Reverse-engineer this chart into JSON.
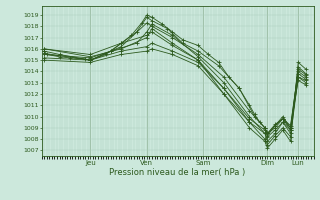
{
  "background_color": "#cce8dc",
  "grid_color": "#aaccbb",
  "line_color": "#2d5a1e",
  "ylabel_text": "Pression niveau de la mer( hPa )",
  "yticks": [
    1007,
    1008,
    1009,
    1010,
    1011,
    1012,
    1013,
    1014,
    1015,
    1016,
    1017,
    1018,
    1019
  ],
  "ylim": [
    1006.5,
    1019.8
  ],
  "xlim": [
    -0.05,
    5.25
  ],
  "xtick_positions": [
    0.9,
    2.0,
    3.1,
    4.35,
    4.95
  ],
  "xtick_labels": [
    "Jeu",
    "Ven",
    "Sam",
    "Dim",
    "Lun"
  ],
  "vline_positions": [
    0.9,
    2.0,
    3.1,
    4.35,
    4.95
  ],
  "lines": [
    [
      0.0,
      1015.8,
      0.05,
      1015.5,
      0.3,
      1015.3,
      0.5,
      1015.2,
      0.8,
      1015.1,
      0.9,
      1015.0,
      1.2,
      1015.5,
      1.5,
      1016.5,
      1.7,
      1017.2,
      1.9,
      1018.3,
      2.0,
      1019.0,
      2.1,
      1018.8,
      2.3,
      1018.2,
      2.5,
      1017.5,
      2.7,
      1016.8,
      3.0,
      1016.3,
      3.2,
      1015.5,
      3.4,
      1014.8,
      3.6,
      1013.5,
      3.8,
      1012.5,
      4.0,
      1011.0,
      4.1,
      1010.2,
      4.2,
      1009.5,
      4.3,
      1009.0,
      4.35,
      1008.5,
      4.5,
      1009.2,
      4.65,
      1009.8,
      4.8,
      1009.2,
      4.95,
      1014.0,
      5.1,
      1013.5
    ],
    [
      0.0,
      1015.8,
      0.3,
      1015.5,
      0.9,
      1015.0,
      1.3,
      1015.8,
      1.8,
      1017.5,
      2.0,
      1018.8,
      2.1,
      1018.5,
      2.4,
      1017.8,
      2.7,
      1016.5,
      3.0,
      1015.8,
      3.4,
      1014.5,
      3.8,
      1012.5,
      4.1,
      1010.0,
      4.3,
      1009.0,
      4.35,
      1008.2,
      4.5,
      1008.8,
      4.65,
      1009.5,
      4.8,
      1008.8,
      4.95,
      1013.8,
      5.1,
      1013.3
    ],
    [
      0.0,
      1015.6,
      0.9,
      1015.0,
      1.5,
      1016.2,
      2.0,
      1018.3,
      2.1,
      1018.0,
      2.5,
      1017.0,
      3.0,
      1015.5,
      3.5,
      1013.5,
      4.0,
      1010.5,
      4.3,
      1009.0,
      4.35,
      1008.5,
      4.5,
      1009.3,
      4.65,
      1009.8,
      4.8,
      1009.0,
      4.95,
      1014.2,
      5.1,
      1013.7
    ],
    [
      0.0,
      1015.5,
      0.9,
      1015.2,
      1.3,
      1015.8,
      1.8,
      1016.5,
      2.0,
      1017.5,
      2.1,
      1018.2,
      2.5,
      1017.2,
      3.0,
      1015.3,
      3.5,
      1013.0,
      4.0,
      1010.0,
      4.3,
      1008.5,
      4.35,
      1007.8,
      4.5,
      1008.5,
      4.65,
      1009.5,
      4.8,
      1008.5,
      4.95,
      1014.4,
      5.1,
      1013.8
    ],
    [
      0.0,
      1016.0,
      0.9,
      1015.3,
      1.5,
      1016.0,
      2.0,
      1017.0,
      2.1,
      1017.8,
      2.5,
      1016.5,
      3.0,
      1015.0,
      3.5,
      1012.5,
      4.0,
      1009.5,
      4.3,
      1008.0,
      4.35,
      1007.5,
      4.5,
      1008.3,
      4.65,
      1009.0,
      4.8,
      1008.2,
      4.95,
      1013.5,
      5.1,
      1013.2
    ],
    [
      0.0,
      1016.0,
      0.9,
      1015.5,
      1.5,
      1016.5,
      2.0,
      1017.2,
      2.1,
      1017.5,
      2.5,
      1016.3,
      3.0,
      1015.0,
      3.5,
      1012.0,
      4.0,
      1009.0,
      4.3,
      1007.8,
      4.35,
      1007.2,
      4.5,
      1008.0,
      4.65,
      1008.8,
      4.8,
      1007.8,
      4.95,
      1014.8,
      5.1,
      1014.2
    ],
    [
      0.0,
      1015.2,
      0.9,
      1015.0,
      1.5,
      1015.8,
      2.0,
      1016.2,
      2.1,
      1016.5,
      2.5,
      1015.8,
      3.0,
      1014.8,
      3.5,
      1012.5,
      4.0,
      1009.8,
      4.3,
      1008.8,
      4.35,
      1008.5,
      4.5,
      1009.0,
      4.65,
      1009.8,
      4.8,
      1008.8,
      4.95,
      1013.5,
      5.1,
      1013.0
    ],
    [
      0.0,
      1015.0,
      0.9,
      1014.8,
      1.5,
      1015.5,
      2.0,
      1015.8,
      2.1,
      1016.0,
      2.5,
      1015.5,
      3.0,
      1014.5,
      3.5,
      1012.0,
      4.0,
      1009.5,
      4.3,
      1008.5,
      4.35,
      1008.3,
      4.5,
      1009.2,
      4.65,
      1010.0,
      4.8,
      1009.0,
      4.95,
      1013.2,
      5.1,
      1012.8
    ]
  ]
}
